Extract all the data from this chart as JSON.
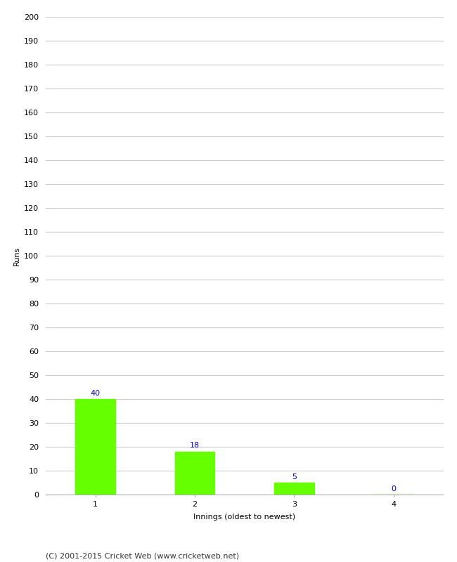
{
  "categories": [
    "1",
    "2",
    "3",
    "4"
  ],
  "values": [
    40,
    18,
    5,
    0
  ],
  "bar_color": "#66ff00",
  "bar_edge_color": "#66ff00",
  "ylabel": "Runs",
  "xlabel": "Innings (oldest to newest)",
  "ylim": [
    0,
    200
  ],
  "yticks": [
    0,
    10,
    20,
    30,
    40,
    50,
    60,
    70,
    80,
    90,
    100,
    110,
    120,
    130,
    140,
    150,
    160,
    170,
    180,
    190,
    200
  ],
  "annotation_color": "#0000cc",
  "annotation_fontsize": 8,
  "axis_label_fontsize": 8,
  "tick_fontsize": 8,
  "footer_text": "(C) 2001-2015 Cricket Web (www.cricketweb.net)",
  "footer_fontsize": 8,
  "background_color": "#ffffff",
  "grid_color": "#cccccc",
  "bar_width": 0.4
}
